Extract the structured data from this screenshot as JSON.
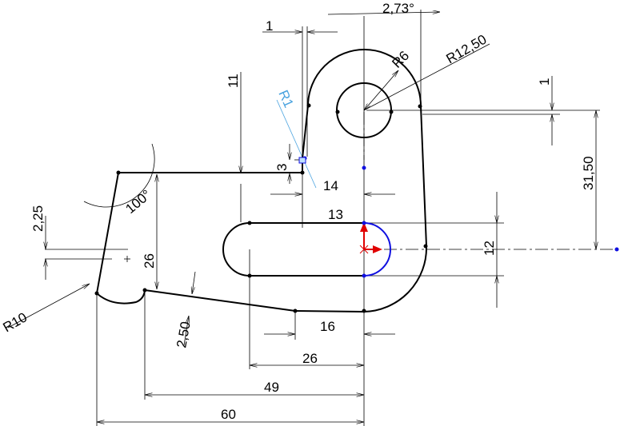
{
  "drawing": {
    "dimensions": {
      "d_2_73": "2,73°",
      "d_1_top": "1",
      "d_R6": "R6",
      "d_R12_50": "R12,50",
      "d_1_right": "1",
      "d_11": "11",
      "d_R1": "R1",
      "d_3": "3",
      "d_14": "14",
      "d_31_50": "31,50",
      "d_100": "100°",
      "d_2_25": "2,25",
      "d_13": "13",
      "d_12": "12",
      "d_26_vert": "26",
      "d_R10": "R10",
      "d_2_50": "2,50",
      "d_16": "16",
      "d_26_horiz": "26",
      "d_49": "49",
      "d_60": "60"
    },
    "colors": {
      "geometry": "#000000",
      "selected_arc": "#1010e0",
      "origin_axis": "#e00000",
      "construction_dim": "#4aa3df",
      "point_blue": "#1010e0"
    }
  }
}
